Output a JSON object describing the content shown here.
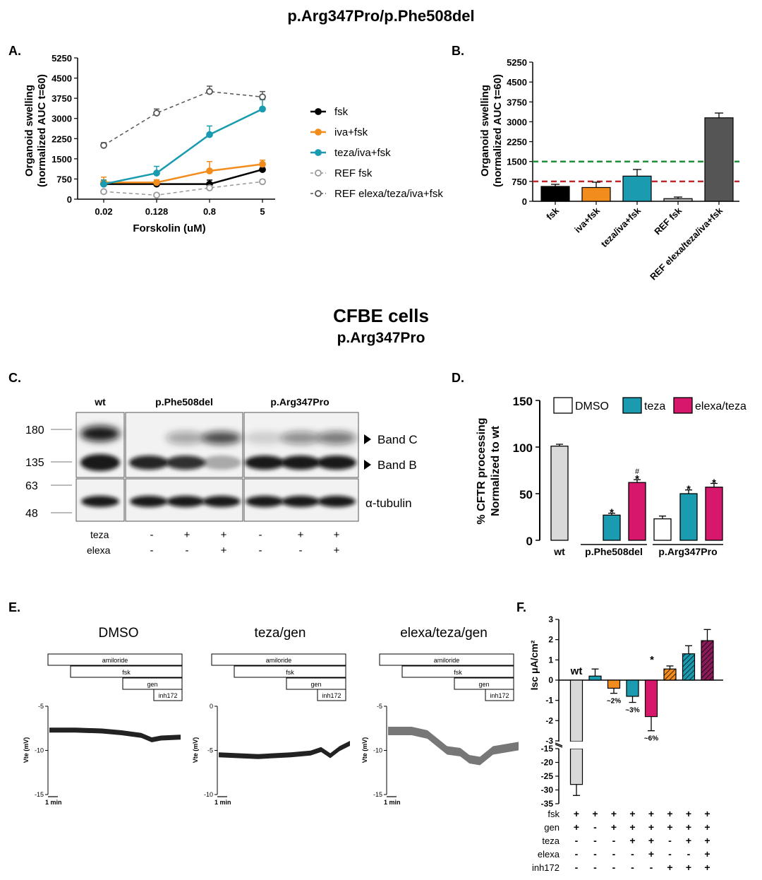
{
  "titles": {
    "top_title": "p.Arg347Pro/p.Phe508del",
    "section2_title": "CFBE cells",
    "section2_subtitle": "p.Arg347Pro"
  },
  "panel_labels": {
    "A": "A.",
    "B": "B.",
    "C": "C.",
    "D": "D.",
    "E": "E.",
    "F": "F."
  },
  "colors": {
    "fsk": "#000000",
    "iva": "#f28c1c",
    "teza": "#1a9bb0",
    "ref": "#999999",
    "refelexa": "#555555",
    "magenta": "#d6176b",
    "grey_bar": "#d9d9d9",
    "dark_bar": "#555555",
    "green_line": "#1f8f3a",
    "red_line": "#c0262d",
    "purple": "#8b1a5a"
  },
  "chart_data": [
    {
      "id": "A",
      "type": "line",
      "title": "",
      "xlabel": "Forskolin (uM)",
      "ylabel_line1": "Organoid swelling",
      "ylabel_line2": "(normalized AUC t=60)",
      "x_categories": [
        "0.02",
        "0.128",
        "0.8",
        "5"
      ],
      "y_ticks": [
        "0",
        "750",
        "1500",
        "2250",
        "3000",
        "3750",
        "4500",
        "5250"
      ],
      "ylim": [
        0,
        5250
      ],
      "series": [
        {
          "name": "fsk",
          "color": "#000000",
          "dashed": false,
          "open": false,
          "values": [
            560,
            560,
            560,
            1100
          ],
          "errors": [
            150,
            100,
            150,
            350
          ]
        },
        {
          "name": "iva+fsk",
          "color": "#f28c1c",
          "dashed": false,
          "open": false,
          "values": [
            620,
            620,
            1050,
            1300
          ],
          "errors": [
            200,
            100,
            350,
            150
          ]
        },
        {
          "name": "teza/iva+fsk",
          "color": "#1a9bb0",
          "dashed": false,
          "open": false,
          "values": [
            560,
            970,
            2400,
            3350
          ],
          "errors": [
            150,
            250,
            320,
            350
          ]
        },
        {
          "name": "REF fsk",
          "color": "#999999",
          "dashed": true,
          "open": true,
          "values": [
            280,
            150,
            420,
            650
          ],
          "errors": [
            50,
            50,
            80,
            80
          ]
        },
        {
          "name": "REF elexa/teza/iva+fsk",
          "color": "#555555",
          "dashed": true,
          "open": true,
          "values": [
            2000,
            3200,
            4000,
            3800
          ],
          "errors": [
            100,
            150,
            200,
            200
          ]
        }
      ]
    },
    {
      "id": "B",
      "type": "bar",
      "ylabel_line1": "Organoid swelling",
      "ylabel_line2": "(normalized AUC t=60)",
      "categories": [
        "fsk",
        "iva+fsk",
        "teza/iva+fsk",
        "REF fsk",
        "REF elexa/teza/iva+fsk"
      ],
      "values": [
        560,
        520,
        950,
        100,
        3150
      ],
      "errors": [
        80,
        200,
        250,
        60,
        180
      ],
      "colors": [
        "#000000",
        "#f28c1c",
        "#1a9bb0",
        "#b0b0b0",
        "#555555"
      ],
      "y_ticks": [
        "0",
        "750",
        "1500",
        "2250",
        "3000",
        "3750",
        "4500",
        "5250"
      ],
      "ylim": [
        0,
        5250
      ],
      "reference_lines": [
        {
          "value": 1500,
          "color": "#1f8f3a"
        },
        {
          "value": 750,
          "color": "#c0262d"
        }
      ]
    },
    {
      "id": "C",
      "type": "western_blot",
      "lane_groups": [
        "wt",
        "p.Phe508del",
        "p.Arg347Pro"
      ],
      "mw_markers": [
        "180",
        "135",
        "63",
        "48"
      ],
      "band_labels": [
        "Band C",
        "Band B",
        "α-tubulin"
      ],
      "row_labels": [
        "teza",
        "elexa"
      ],
      "teza_signs": [
        "-",
        "+",
        "+",
        "-",
        "+",
        "+"
      ],
      "elexa_signs": [
        "-",
        "-",
        "+",
        "-",
        "-",
        "+"
      ]
    },
    {
      "id": "D",
      "type": "bar",
      "ylabel_line1": "% CFTR processing",
      "ylabel_line2": "Normalized to wt",
      "legend": [
        "DMSO",
        "teza",
        "elexa/teza"
      ],
      "y_ticks": [
        "0",
        "50",
        "100",
        "150"
      ],
      "ylim": [
        0,
        150
      ],
      "group_labels": [
        "wt",
        "p.Phe508del",
        "p.Arg347Pro"
      ],
      "bars": [
        {
          "group": "wt",
          "series": "wt",
          "value": 101,
          "error": 2,
          "mark": ""
        },
        {
          "group": "p.Phe508del",
          "series": "teza",
          "value": 27,
          "error": 2,
          "mark": "*"
        },
        {
          "group": "p.Phe508del",
          "series": "elexa/teza",
          "value": 62,
          "error": 3,
          "mark": "#*"
        },
        {
          "group": "p.Arg347Pro",
          "series": "DMSO",
          "value": 23,
          "error": 3,
          "mark": ""
        },
        {
          "group": "p.Arg347Pro",
          "series": "teza",
          "value": 50,
          "error": 4,
          "mark": "*"
        },
        {
          "group": "p.Arg347Pro",
          "series": "elexa/teza",
          "value": 57,
          "error": 4,
          "mark": "*"
        }
      ],
      "hash_mark": "#",
      "star_mark": "*"
    },
    {
      "id": "E",
      "type": "line",
      "traces": [
        {
          "title": "DMSO",
          "y_ticks": [
            "-5",
            "-10",
            "-15"
          ],
          "ylim": [
            -15,
            -5
          ]
        },
        {
          "title": "teza/gen",
          "y_ticks": [
            "0",
            "-5",
            "-10"
          ],
          "ylim": [
            -10,
            0
          ]
        },
        {
          "title": "elexa/teza/gen",
          "y_ticks": [
            "-5",
            "-10",
            "-15"
          ],
          "ylim": [
            -15,
            -5
          ]
        }
      ],
      "ylabel": "Vte (mV)",
      "scale_label": "1 min",
      "drug_bars": [
        "amiloride",
        "fsk",
        "gen",
        "inh172"
      ]
    },
    {
      "id": "F",
      "type": "bar",
      "ylabel": "Isc μA/cm²",
      "y_ticks_upper": [
        "3",
        "2",
        "1",
        "0",
        "-1",
        "-2",
        "-3"
      ],
      "y_ticks_lower": [
        "-15",
        "-20",
        "-25",
        "-30",
        "-35"
      ],
      "values": [
        -28,
        0.2,
        -0.4,
        -0.8,
        -1.8,
        0.55,
        1.3,
        1.95
      ],
      "errors": [
        4,
        0.35,
        0.25,
        0.3,
        0.7,
        0.15,
        0.4,
        0.55
      ],
      "colors": [
        "#d9d9d9",
        "#1a9bb0",
        "#f28c1c",
        "#1a9bb0",
        "#d6176b",
        "#f28c1c",
        "#1a9bb0",
        "#8b1a5a"
      ],
      "hatched": [
        false,
        false,
        false,
        false,
        false,
        true,
        true,
        true
      ],
      "annotations": [
        "wt",
        "",
        "~2%",
        "~3%",
        "~6%",
        "",
        "",
        ""
      ],
      "star_mark": "*",
      "condition_labels": [
        "fsk",
        "gen",
        "teza",
        "elexa",
        "inh172"
      ],
      "condition_signs": [
        [
          "+",
          "+",
          "+",
          "+",
          "+",
          "+",
          "+",
          "+"
        ],
        [
          "+",
          "-",
          "+",
          "+",
          "+",
          "+",
          "+",
          "+"
        ],
        [
          "-",
          "-",
          "-",
          "+",
          "+",
          "-",
          "+",
          "+"
        ],
        [
          "-",
          "-",
          "-",
          "-",
          "+",
          "-",
          "-",
          "+"
        ],
        [
          "-",
          "-",
          "-",
          "-",
          "-",
          "+",
          "+",
          "+"
        ]
      ]
    }
  ]
}
